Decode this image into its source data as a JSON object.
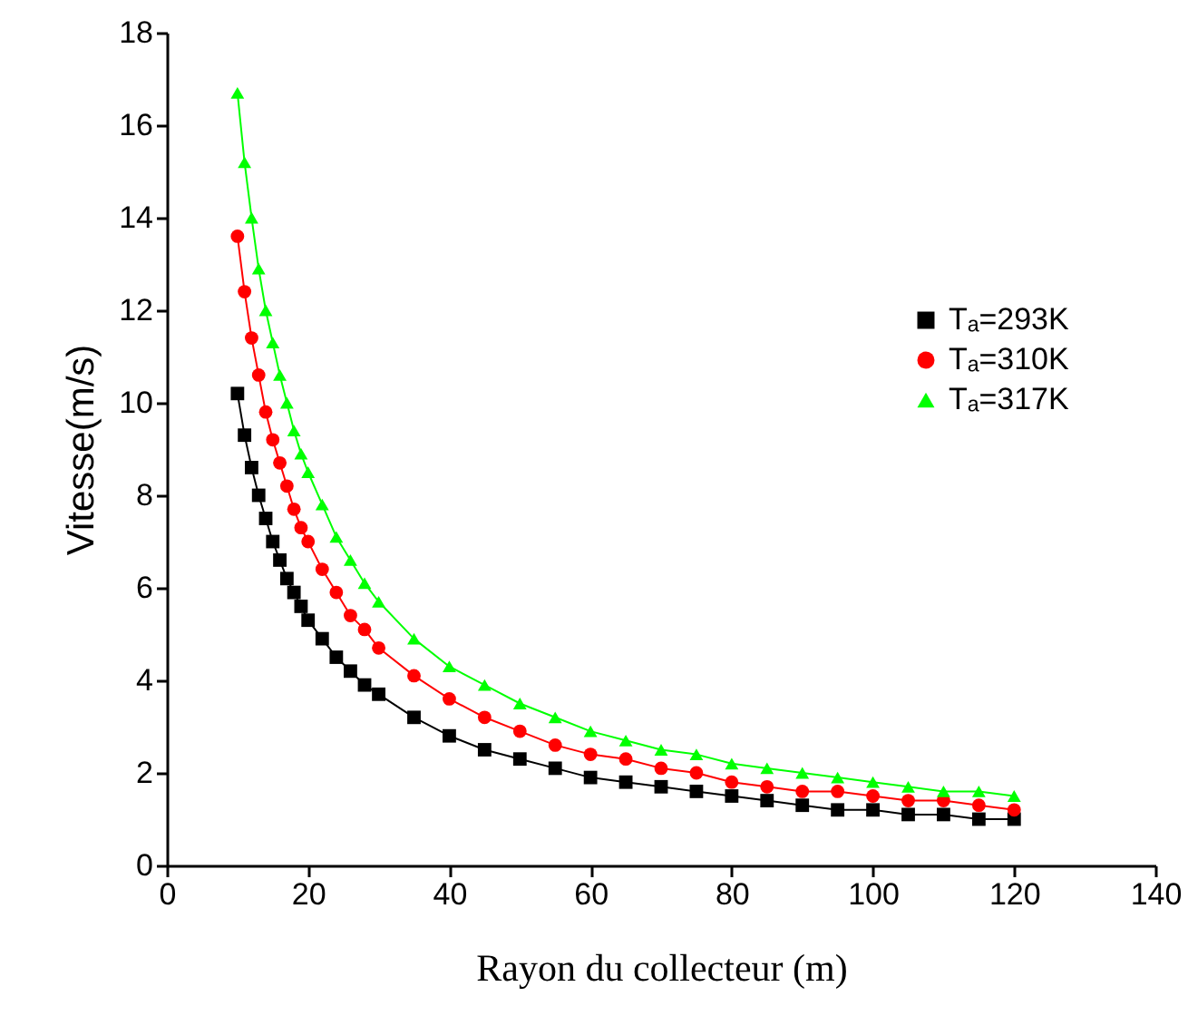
{
  "chart_data": {
    "type": "line",
    "xlabel": "Rayon du collecteur (m)",
    "ylabel": "Vitesse(m/s)",
    "x": [
      10,
      11,
      12,
      13,
      14,
      15,
      16,
      17,
      18,
      19,
      20,
      22,
      24,
      26,
      28,
      30,
      35,
      40,
      45,
      50,
      55,
      60,
      65,
      70,
      75,
      80,
      85,
      90,
      95,
      100,
      105,
      110,
      115,
      120
    ],
    "xlim": [
      0,
      140
    ],
    "ylim": [
      0,
      18
    ],
    "xticks": [
      0,
      20,
      40,
      60,
      80,
      100,
      120,
      140
    ],
    "yticks": [
      0,
      2,
      4,
      6,
      8,
      10,
      12,
      14,
      16,
      18
    ],
    "grid": false,
    "legend": "right",
    "line_style": "solid",
    "series": [
      {
        "name": "Tₐ=293K",
        "color": "#000000",
        "marker": "square",
        "values": [
          10.2,
          9.3,
          8.6,
          8.0,
          7.5,
          7.0,
          6.6,
          6.2,
          5.9,
          5.6,
          5.3,
          4.9,
          4.5,
          4.2,
          3.9,
          3.7,
          3.2,
          2.8,
          2.5,
          2.3,
          2.1,
          1.9,
          1.8,
          1.7,
          1.6,
          1.5,
          1.4,
          1.3,
          1.2,
          1.2,
          1.1,
          1.1,
          1.0,
          1.0
        ]
      },
      {
        "name": "Tₐ=310K",
        "color": "#ff0000",
        "marker": "circle",
        "values": [
          13.6,
          12.4,
          11.4,
          10.6,
          9.8,
          9.2,
          8.7,
          8.2,
          7.7,
          7.3,
          7.0,
          6.4,
          5.9,
          5.4,
          5.1,
          4.7,
          4.1,
          3.6,
          3.2,
          2.9,
          2.6,
          2.4,
          2.3,
          2.1,
          2.0,
          1.8,
          1.7,
          1.6,
          1.6,
          1.5,
          1.4,
          1.4,
          1.3,
          1.2
        ]
      },
      {
        "name": "Tₐ=317K",
        "color": "#00ff00",
        "marker": "triangle",
        "values": [
          16.7,
          15.2,
          14.0,
          12.9,
          12.0,
          11.3,
          10.6,
          10.0,
          9.4,
          8.9,
          8.5,
          7.8,
          7.1,
          6.6,
          6.1,
          5.7,
          4.9,
          4.3,
          3.9,
          3.5,
          3.2,
          2.9,
          2.7,
          2.5,
          2.4,
          2.2,
          2.1,
          2.0,
          1.9,
          1.8,
          1.7,
          1.6,
          1.6,
          1.5
        ]
      }
    ]
  }
}
